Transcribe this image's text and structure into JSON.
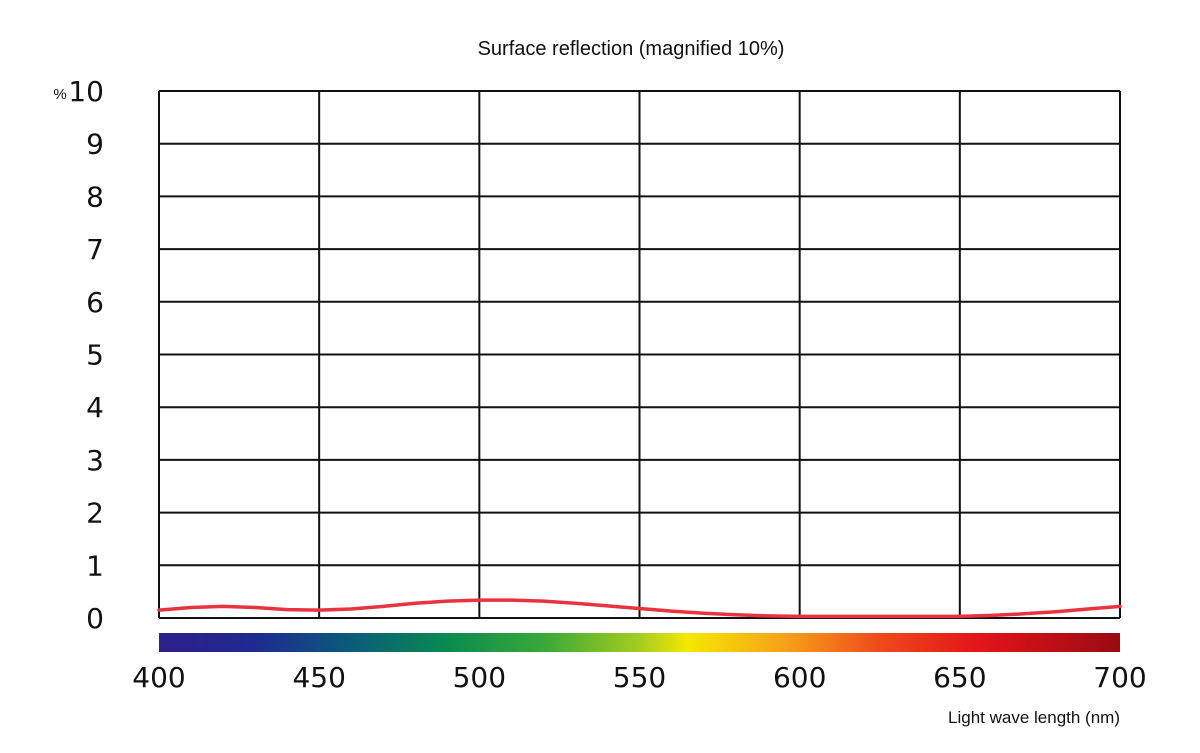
{
  "chart_data": {
    "type": "line",
    "title": "Surface reflection (magnified 10%)",
    "xlabel": "Light wave length (nm)",
    "ylabel": "",
    "y_unit": "%",
    "xlim": [
      400,
      700
    ],
    "ylim": [
      0,
      10
    ],
    "x_ticks": [
      "400",
      "450",
      "500",
      "550",
      "600",
      "650",
      "700"
    ],
    "y_ticks": [
      "0",
      "1",
      "2",
      "3",
      "4",
      "5",
      "6",
      "7",
      "8",
      "9",
      "10"
    ],
    "grid": true,
    "spectrum_bar": true,
    "series": [
      {
        "color": "#e8343f",
        "x": [
          400,
          410,
          420,
          430,
          440,
          450,
          460,
          470,
          480,
          490,
          500,
          510,
          520,
          530,
          540,
          550,
          560,
          570,
          580,
          590,
          600,
          610,
          620,
          630,
          640,
          650,
          660,
          670,
          680,
          690,
          700
        ],
        "y": [
          0.15,
          0.2,
          0.22,
          0.2,
          0.16,
          0.15,
          0.17,
          0.22,
          0.28,
          0.32,
          0.34,
          0.34,
          0.32,
          0.28,
          0.23,
          0.18,
          0.13,
          0.09,
          0.06,
          0.04,
          0.03,
          0.03,
          0.03,
          0.03,
          0.03,
          0.03,
          0.05,
          0.08,
          0.12,
          0.17,
          0.22
        ]
      }
    ]
  }
}
